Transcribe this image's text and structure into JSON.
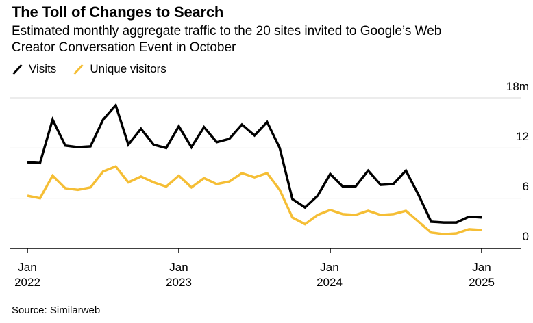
{
  "header": {
    "title": "The Toll of Changes to Search",
    "subtitle_line1": "Estimated monthly aggregate traffic to the 20 sites invited to Google’s Web",
    "subtitle_line2": "Creator Conversation Event in October"
  },
  "legend": {
    "items": [
      {
        "label": "Visits",
        "color": "#000000"
      },
      {
        "label": "Unique visitors",
        "color": "#F5BE35"
      }
    ]
  },
  "source": "Source: Similarweb",
  "chart_data": {
    "type": "line",
    "title": "The Toll of Changes to Search",
    "subtitle": "Estimated monthly aggregate traffic to the 20 sites invited to Google’s Web Creator Conversation Event in October",
    "unit": "millions of visits per month",
    "grid": "horizontal",
    "legend_position": "top-left",
    "ylim": [
      0,
      18
    ],
    "categories": [
      "Jan 2022",
      "Feb 2022",
      "Mar 2022",
      "Apr 2022",
      "May 2022",
      "Jun 2022",
      "Jul 2022",
      "Aug 2022",
      "Sep 2022",
      "Oct 2022",
      "Nov 2022",
      "Dec 2022",
      "Jan 2023",
      "Feb 2023",
      "Mar 2023",
      "Apr 2023",
      "May 2023",
      "Jun 2023",
      "Jul 2023",
      "Aug 2023",
      "Sep 2023",
      "Oct 2023",
      "Nov 2023",
      "Dec 2023",
      "Jan 2024",
      "Feb 2024",
      "Mar 2024",
      "Apr 2024",
      "May 2024",
      "Jun 2024",
      "Jul 2024",
      "Aug 2024",
      "Sep 2024",
      "Oct 2024",
      "Nov 2024",
      "Dec 2024",
      "Jan 2025"
    ],
    "series": [
      {
        "name": "Visits",
        "color": "#000000",
        "values": [
          10.3,
          10.2,
          15.4,
          12.3,
          12.1,
          12.2,
          15.4,
          17.1,
          12.4,
          14.3,
          12.4,
          12.0,
          14.6,
          12.1,
          14.5,
          12.7,
          13.1,
          14.8,
          13.5,
          15.1,
          12.0,
          5.9,
          4.9,
          6.3,
          8.9,
          7.4,
          7.4,
          9.3,
          7.6,
          7.7,
          9.3,
          6.4,
          3.2,
          3.1,
          3.1,
          3.8,
          3.7
        ]
      },
      {
        "name": "Unique visitors",
        "color": "#F5BE35",
        "values": [
          6.3,
          6.0,
          8.7,
          7.2,
          7.0,
          7.3,
          9.2,
          9.8,
          7.9,
          8.6,
          7.9,
          7.4,
          8.7,
          7.3,
          8.4,
          7.7,
          8.0,
          9.0,
          8.5,
          9.0,
          7.0,
          3.7,
          2.9,
          4.0,
          4.6,
          4.1,
          4.0,
          4.5,
          4.0,
          4.1,
          4.5,
          3.2,
          1.9,
          1.7,
          1.8,
          2.3,
          2.2
        ]
      }
    ],
    "y_axis": {
      "side": "right",
      "tick_values": [
        18,
        12,
        6,
        0
      ],
      "tick_labels": [
        "18m",
        "12",
        "6",
        "0"
      ]
    },
    "x_axis": {
      "tick_indices": [
        0,
        12,
        24,
        36
      ],
      "tick_labels": [
        {
          "month": "Jan",
          "year": "2022"
        },
        {
          "month": "Jan",
          "year": "2023"
        },
        {
          "month": "Jan",
          "year": "2024"
        },
        {
          "month": "Jan",
          "year": "2025"
        }
      ]
    }
  }
}
